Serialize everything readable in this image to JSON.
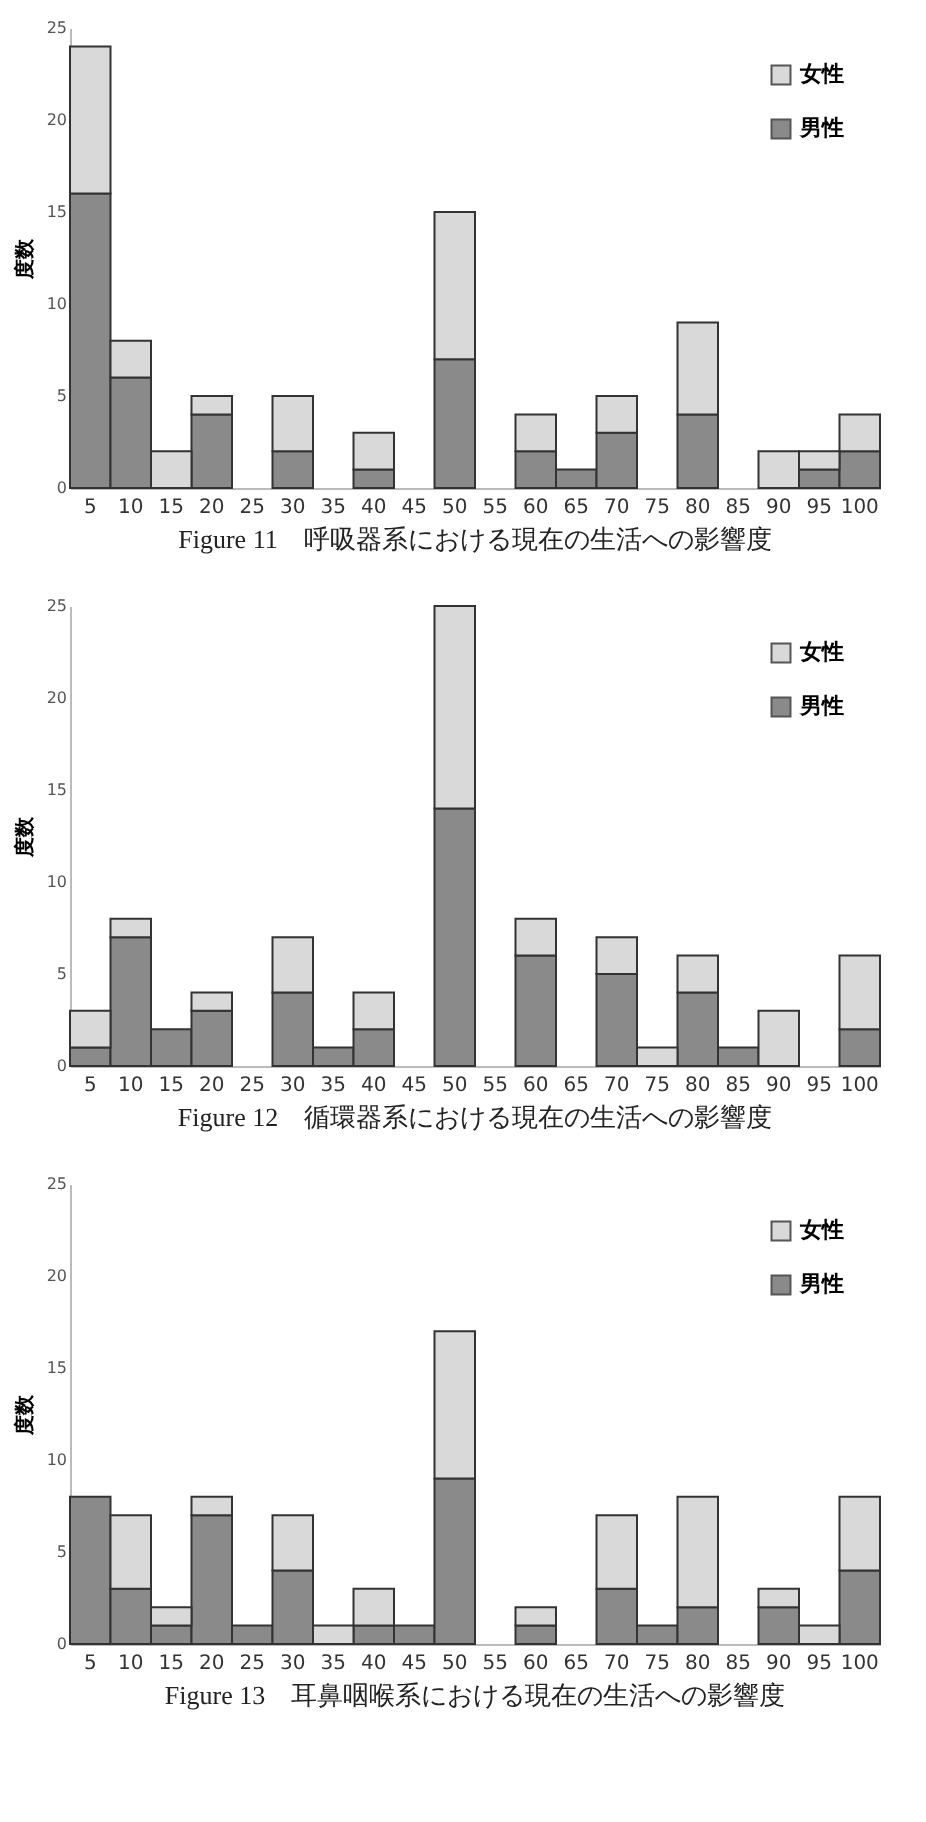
{
  "chart_data": [
    {
      "type": "bar",
      "stacked": true,
      "title": "Figure 11　呼吸器系における現在の生活への影響度",
      "ylabel": "度数",
      "categories": [
        "5",
        "10",
        "15",
        "20",
        "25",
        "30",
        "35",
        "40",
        "45",
        "50",
        "55",
        "60",
        "65",
        "70",
        "75",
        "80",
        "85",
        "90",
        "95",
        "100"
      ],
      "ylim": [
        0,
        25
      ],
      "yticks": [
        0,
        5,
        10,
        15,
        20,
        25
      ],
      "legend": "top right",
      "grid": false,
      "series": [
        {
          "name": "男性",
          "color": "#8a8a8a",
          "values": [
            16,
            6,
            0,
            4,
            0,
            2,
            0,
            1,
            0,
            7,
            0,
            2,
            1,
            3,
            0,
            4,
            0,
            0,
            1,
            2
          ]
        },
        {
          "name": "女性",
          "color": "#d9d9d9",
          "values": [
            8,
            2,
            2,
            1,
            0,
            3,
            0,
            2,
            0,
            8,
            0,
            2,
            0,
            2,
            0,
            5,
            0,
            2,
            1,
            2
          ]
        }
      ]
    },
    {
      "type": "bar",
      "stacked": true,
      "title": "Figure 12　循環器系における現在の生活への影響度",
      "ylabel": "度数",
      "categories": [
        "5",
        "10",
        "15",
        "20",
        "25",
        "30",
        "35",
        "40",
        "45",
        "50",
        "55",
        "60",
        "65",
        "70",
        "75",
        "80",
        "85",
        "90",
        "95",
        "100"
      ],
      "ylim": [
        0,
        25
      ],
      "yticks": [
        0,
        5,
        10,
        15,
        20,
        25
      ],
      "legend": "top right",
      "grid": false,
      "series": [
        {
          "name": "男性",
          "color": "#8a8a8a",
          "values": [
            1,
            7,
            2,
            3,
            0,
            4,
            1,
            2,
            0,
            14,
            0,
            6,
            0,
            5,
            0,
            4,
            1,
            0,
            0,
            2
          ]
        },
        {
          "name": "女性",
          "color": "#d9d9d9",
          "values": [
            2,
            1,
            0,
            1,
            0,
            3,
            0,
            2,
            0,
            11,
            0,
            2,
            0,
            2,
            1,
            2,
            0,
            3,
            0,
            4
          ]
        }
      ]
    },
    {
      "type": "bar",
      "stacked": true,
      "title": "Figure 13　耳鼻咽喉系における現在の生活への影響度",
      "ylabel": "度数",
      "categories": [
        "5",
        "10",
        "15",
        "20",
        "25",
        "30",
        "35",
        "40",
        "45",
        "50",
        "55",
        "60",
        "65",
        "70",
        "75",
        "80",
        "85",
        "90",
        "95",
        "100"
      ],
      "ylim": [
        0,
        25
      ],
      "yticks": [
        0,
        5,
        10,
        15,
        20,
        25
      ],
      "legend": "top right",
      "grid": false,
      "series": [
        {
          "name": "男性",
          "color": "#8a8a8a",
          "values": [
            8,
            3,
            1,
            7,
            1,
            4,
            0,
            1,
            1,
            9,
            0,
            1,
            0,
            3,
            1,
            2,
            0,
            2,
            0,
            4
          ]
        },
        {
          "name": "女性",
          "color": "#d9d9d9",
          "values": [
            0,
            4,
            1,
            1,
            0,
            3,
            1,
            2,
            0,
            8,
            0,
            1,
            0,
            4,
            0,
            6,
            0,
            1,
            1,
            4
          ]
        }
      ]
    }
  ]
}
